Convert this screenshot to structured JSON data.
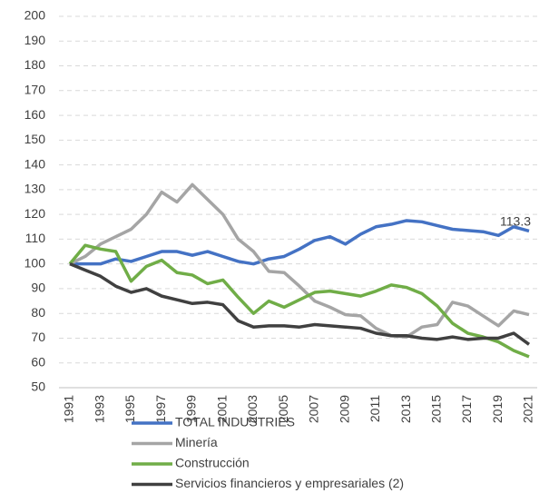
{
  "chart_data": {
    "type": "line",
    "categories": [
      "1991",
      null,
      "1993",
      null,
      "1995",
      null,
      "1997",
      null,
      "1999",
      null,
      "2001",
      null,
      "2003",
      null,
      "2005",
      null,
      "2007",
      null,
      "2009",
      null,
      "2011",
      null,
      "2013",
      null,
      "2015",
      null,
      "2017",
      null,
      "2019",
      null,
      "2021"
    ],
    "series": [
      {
        "name": "TOTAL INDUSTRIES",
        "color": "#4472c4",
        "values": [
          100,
          100,
          100,
          102,
          101,
          103,
          105,
          105,
          103.5,
          105,
          103,
          101,
          100,
          102,
          103,
          106,
          109.5,
          111,
          108,
          112,
          115,
          116,
          117.5,
          117,
          115.5,
          114,
          113.5,
          113,
          111.5,
          115,
          113.3
        ]
      },
      {
        "name": "Minería",
        "color": "#a5a5a5",
        "values": [
          100,
          103,
          108,
          111,
          114,
          120,
          129,
          125,
          132,
          126,
          120,
          110,
          105,
          97,
          96.5,
          91,
          85,
          82.5,
          79.5,
          79,
          74,
          71,
          70.5,
          74.5,
          75.5,
          84.5,
          83,
          79,
          75,
          81,
          79.5
        ]
      },
      {
        "name": "Construcción",
        "color": "#70ad47",
        "values": [
          100,
          107.5,
          106,
          105,
          93,
          99,
          101.5,
          96.5,
          95.5,
          92,
          93.5,
          86.5,
          80,
          85,
          82.5,
          85.5,
          88.5,
          89,
          88,
          87,
          89,
          91.5,
          90.5,
          88,
          83,
          76,
          72,
          70.5,
          68.5,
          65,
          62.5
        ]
      },
      {
        "name": "Servicios financieros y empresariales (2)",
        "color": "#404040",
        "values": [
          100,
          97.5,
          95,
          91,
          88.5,
          90,
          87,
          85.5,
          84,
          84.5,
          83.5,
          77,
          74.5,
          75,
          75,
          74.5,
          75.5,
          75,
          74.5,
          74,
          72,
          71,
          71,
          70,
          69.5,
          70.5,
          69.5,
          70,
          70,
          72,
          67.5
        ]
      }
    ],
    "annotation": "113.3",
    "ylim": [
      50,
      200
    ],
    "yticks": [
      50,
      60,
      70,
      80,
      90,
      100,
      110,
      120,
      130,
      140,
      150,
      160,
      170,
      180,
      190,
      200
    ],
    "grid": true
  }
}
